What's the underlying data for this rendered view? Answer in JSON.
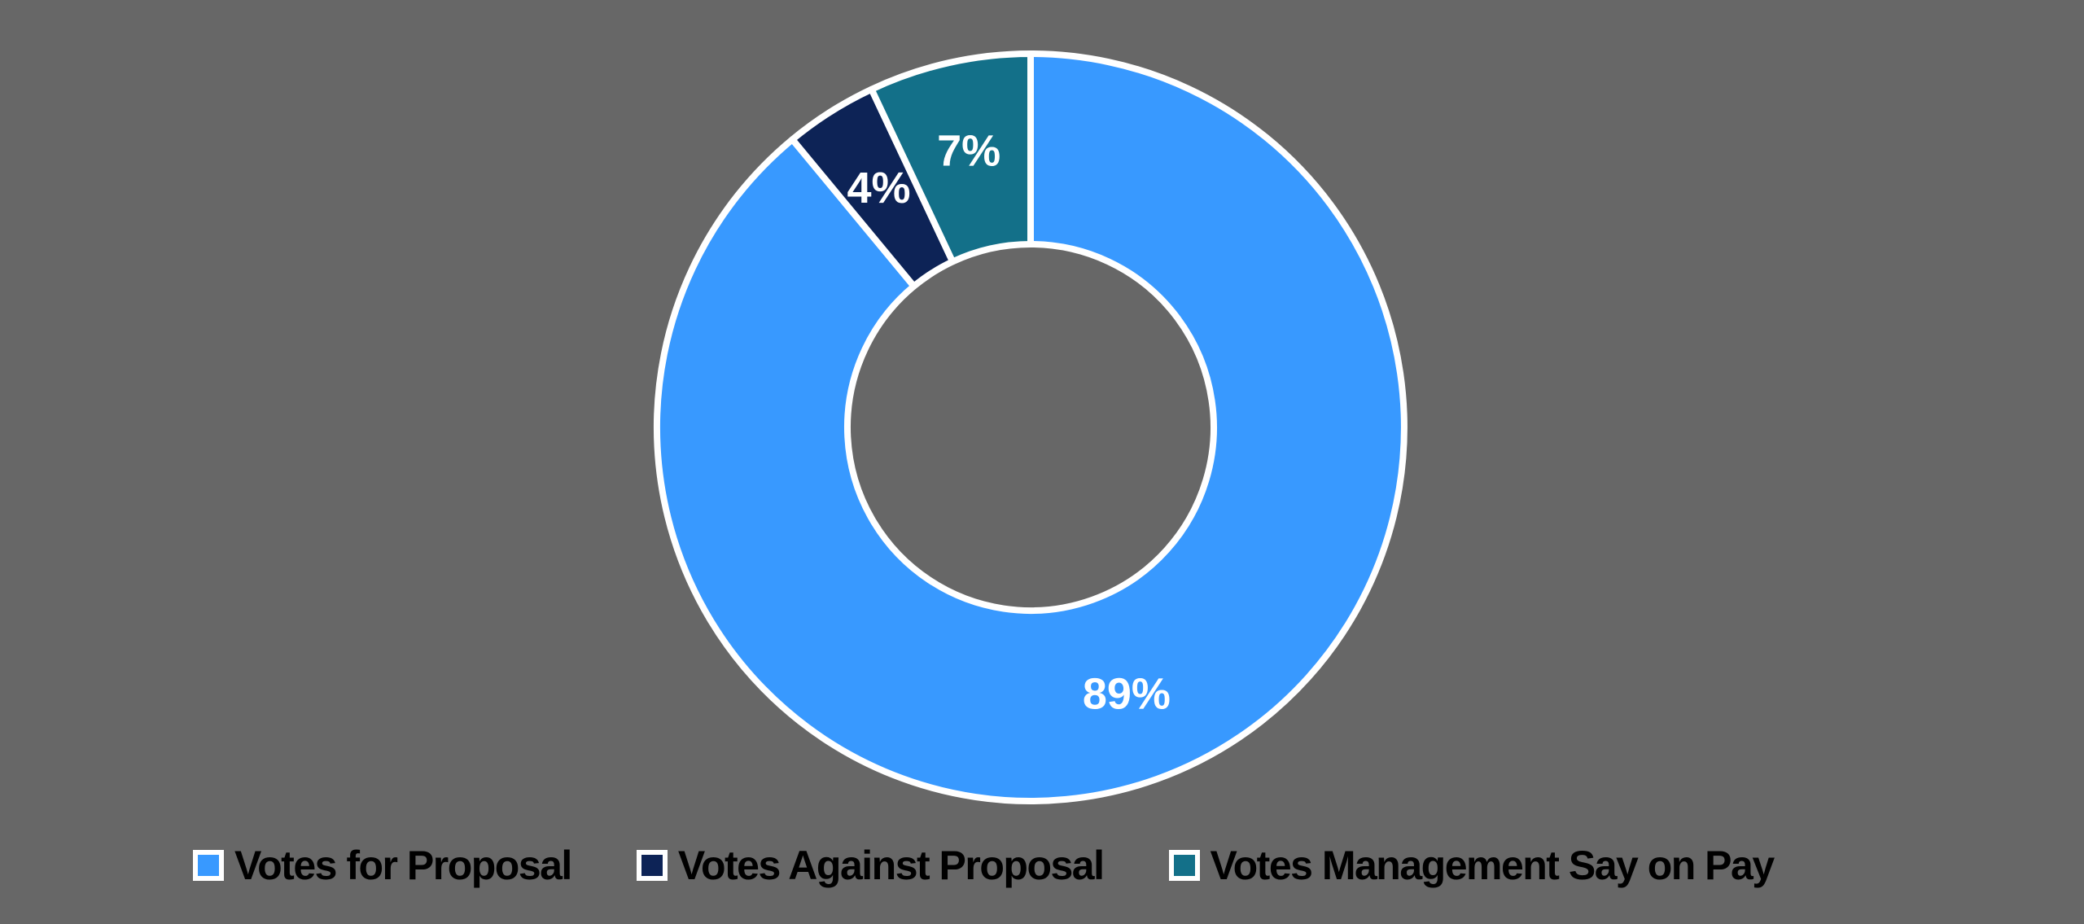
{
  "background_color": "#676767",
  "chart_data": {
    "type": "pie",
    "subtype": "donut",
    "title": "",
    "categories": [
      "Votes for Proposal",
      "Votes Against Proposal",
      "Votes Management Say on Pay"
    ],
    "values": [
      89,
      4,
      7
    ],
    "slices": [
      {
        "label": "Votes for Proposal",
        "value": 89,
        "data_label": "89%",
        "color": "#3899FF"
      },
      {
        "label": "Votes Against Proposal",
        "value": 4,
        "data_label": "4%",
        "color": "#0D2356"
      },
      {
        "label": "Votes Management Say on Pay",
        "value": 7,
        "data_label": "7%",
        "color": "#137089"
      }
    ],
    "start_angle_deg": 0,
    "direction": "clockwise",
    "hole_ratio": 0.49,
    "slice_border_color": "#FFFFFF",
    "data_label_color": "#FFFFFF",
    "legend_position": "bottom",
    "legend_text_color": "#000000",
    "legend_swatch_border_color": "#FFFFFF"
  }
}
